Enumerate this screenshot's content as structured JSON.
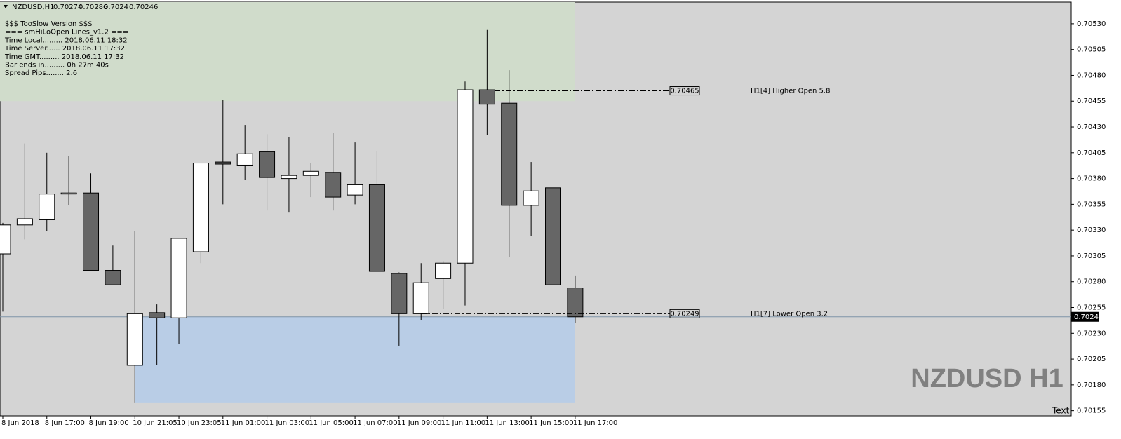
{
  "chart_data": {
    "type": "candlestick",
    "title": "NZDUSD,H1",
    "info": [
      "$$$ TooSlow Version $$$",
      "=== smHiLoOpen Lines_v1.2 ===",
      "Time Local......... 2018.06.11 18:32",
      "Time Server...... 2018.06.11 17:32",
      "Time GMT......... 2018.06.11 17:32",
      "Bar ends in......... 0h 27m 40s",
      "Spread Pips........ 2.6"
    ],
    "watermark": "NZDUSD H1",
    "corner_text": "Text",
    "categories": [
      "8 Jun 2018",
      null,
      "8 Jun 17:00",
      null,
      "8 Jun 19:00",
      null,
      "10 Jun 21:05",
      null,
      "10 Jun 23:05",
      null,
      "11 Jun 01:00",
      null,
      "11 Jun 03:00",
      null,
      "11 Jun 05:00",
      null,
      "11 Jun 07:00",
      null,
      "11 Jun 09:00",
      null,
      "11 Jun 11:00",
      null,
      "11 Jun 13:00",
      null,
      "11 Jun 15:00",
      null,
      "11 Jun 17:00"
    ],
    "open": [
      0.70307,
      0.70335,
      0.7034,
      0.70365,
      0.70366,
      0.70291,
      0.70199,
      0.7025,
      0.70245,
      0.70309,
      0.70396,
      0.70393,
      0.70406,
      0.7038,
      0.70383,
      0.70386,
      0.70364,
      0.70374,
      0.70288,
      0.70249,
      0.70283,
      0.70298,
      0.70466,
      0.70453,
      0.70354,
      0.70371,
      0.70274
    ],
    "high": [
      0.70337,
      0.70414,
      0.70405,
      0.70402,
      0.70385,
      0.70315,
      0.70329,
      0.70258,
      0.70322,
      0.70395,
      0.70456,
      0.70432,
      0.70423,
      0.7042,
      0.70395,
      0.70424,
      0.70415,
      0.70407,
      0.70289,
      0.70298,
      0.703,
      0.70474,
      0.70524,
      0.70485,
      0.70396,
      0.70371,
      0.70286
    ],
    "low": [
      0.70251,
      0.70321,
      0.70329,
      0.70354,
      0.70291,
      0.70277,
      0.70163,
      0.70199,
      0.7022,
      0.70298,
      0.70355,
      0.70379,
      0.70349,
      0.70347,
      0.70362,
      0.70349,
      0.70355,
      0.7029,
      0.70218,
      0.70243,
      0.70254,
      0.70257,
      0.70422,
      0.70304,
      0.70324,
      0.70261,
      0.7024
    ],
    "close": [
      0.70335,
      0.70341,
      0.70365,
      0.70366,
      0.70291,
      0.70277,
      0.70249,
      0.70245,
      0.70322,
      0.70395,
      0.70394,
      0.70404,
      0.70381,
      0.70383,
      0.70387,
      0.70362,
      0.70374,
      0.7029,
      0.70249,
      0.70279,
      0.70298,
      0.70466,
      0.70452,
      0.70354,
      0.70368,
      0.70277,
      0.70246
    ],
    "up_color": "#ffffff",
    "down_color": "#666666",
    "zones": [
      {
        "color": "#d0dccb",
        "range": [
          0.70455,
          0.70551
        ]
      },
      {
        "color": "#b9cde6",
        "range": [
          0.70163,
          0.70246
        ]
      }
    ],
    "levels": [
      {
        "value": 0.70465,
        "text": "H1[4] Higher Open 5.8"
      },
      {
        "value": 0.70249,
        "text": "H1[7] Lower Open 3.2"
      }
    ],
    "ylim": [
      0.7015,
      0.70551
    ],
    "yticks": [
      {
        "value": 0.7053,
        "label": "0.70530"
      },
      0.70505,
      {
        "value": 0.7048,
        "label": "0.70480"
      },
      0.70455,
      {
        "value": 0.7043,
        "label": "0.70430"
      },
      0.70405,
      {
        "value": 0.7038,
        "label": "0.70380"
      },
      0.70355,
      {
        "value": 0.7033,
        "label": "0.70330"
      },
      0.70305,
      {
        "value": 0.7028,
        "label": "0.70280"
      },
      0.70255,
      {
        "value": 0.7023,
        "label": "0.70230"
      },
      0.70205,
      {
        "value": 0.7018,
        "label": "0.70180"
      },
      0.70155
    ],
    "grid": false
  }
}
